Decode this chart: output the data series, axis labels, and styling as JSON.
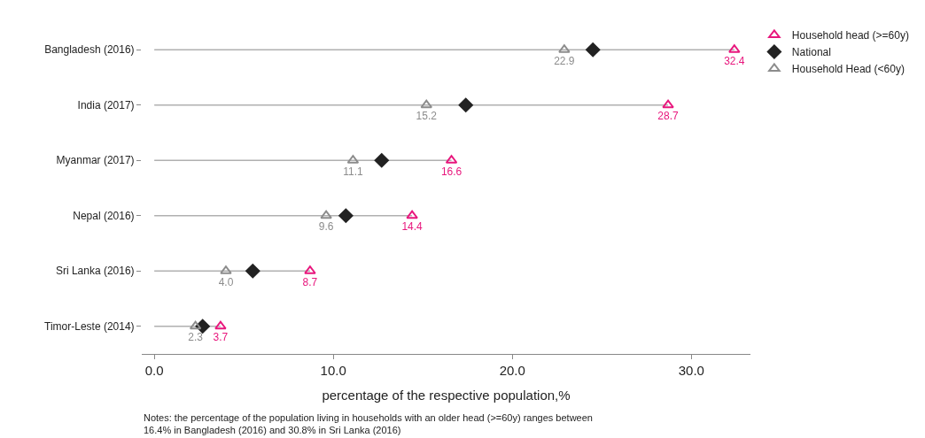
{
  "chart_data": {
    "type": "scatter",
    "orientation": "horizontal",
    "categories": [
      "Bangladesh (2016)",
      "India (2017)",
      "Myanmar (2017)",
      "Nepal (2016)",
      "Sri Lanka (2016)",
      "Timor-Leste (2014)"
    ],
    "series": [
      {
        "name": "Household head (>=60y)",
        "color": "#e8177d",
        "marker": "triangle-open",
        "values": [
          32.4,
          28.7,
          16.6,
          14.4,
          8.7,
          3.7
        ],
        "value_labels": [
          "32.4",
          "28.7",
          "16.6",
          "14.4",
          "8.7",
          "3.7"
        ]
      },
      {
        "name": "National",
        "color": "#222222",
        "marker": "diamond",
        "values": [
          24.5,
          17.4,
          12.7,
          10.7,
          5.5,
          2.7
        ]
      },
      {
        "name": "Household Head (<60y)",
        "color": "#8c8c8c",
        "marker": "triangle-open",
        "values": [
          22.9,
          15.2,
          11.1,
          9.6,
          4.0,
          2.3
        ],
        "value_labels": [
          "22.9",
          "15.2",
          "11.1",
          "9.6",
          "4.0",
          "2.3"
        ]
      }
    ],
    "xlim": [
      -0.7,
      33.3
    ],
    "xticks": [
      {
        "value": 0,
        "label": "0.0"
      },
      {
        "value": 10,
        "label": "10.0"
      },
      {
        "value": 20,
        "label": "20.0"
      },
      {
        "value": 30,
        "label": "30.0"
      }
    ],
    "xlabel": "percentage of the respective population,%",
    "grid": false,
    "legend": "right",
    "annotations": [
      "Notes: the percentage of the population living in households with an older head (>=60y) ranges between\n16.4% in Bangladesh (2016) and 30.8% in Sri Lanka (2016)"
    ]
  }
}
